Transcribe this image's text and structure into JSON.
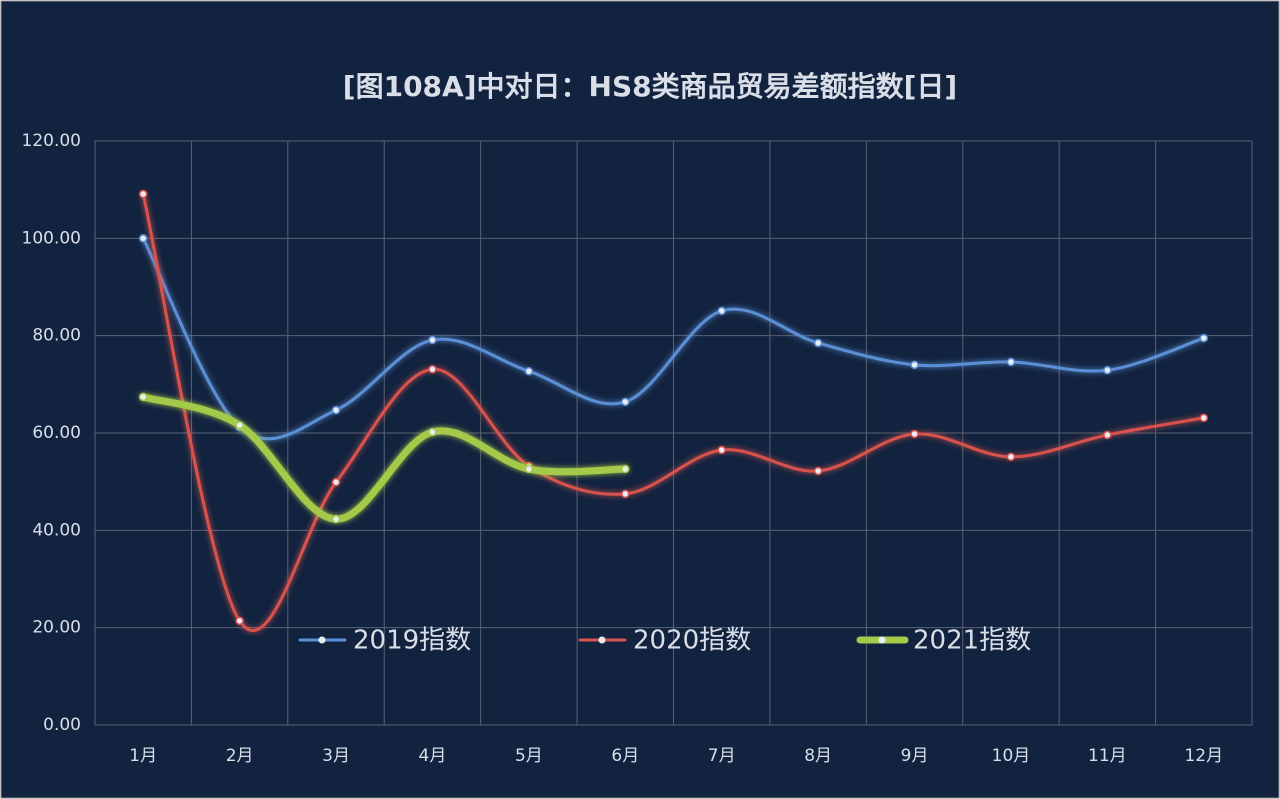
{
  "chart_data": {
    "type": "line",
    "title": "[图108A]中对日：HS8类商品贸易差额指数[日]",
    "categories": [
      "1月",
      "2月",
      "3月",
      "4月",
      "5月",
      "6月",
      "7月",
      "8月",
      "9月",
      "10月",
      "11月",
      "12月"
    ],
    "series": [
      {
        "name": "2019指数",
        "color": "#5b8fd6",
        "values": [
          100,
          61.2,
          64.7,
          79.1,
          72.7,
          66.4,
          85.1,
          78.5,
          74.0,
          74.6,
          72.9,
          79.5
        ]
      },
      {
        "name": "2020指数",
        "color": "#d9524e",
        "values": [
          109.1,
          21.4,
          49.9,
          73.1,
          53.2,
          47.5,
          56.5,
          52.2,
          59.8,
          55.1,
          59.6,
          63.1
        ]
      },
      {
        "name": "2021指数",
        "color": "#a5c94a",
        "values": [
          67.4,
          61.6,
          42.3,
          60.2,
          52.6,
          52.6,
          null,
          null,
          null,
          null,
          null,
          null
        ]
      }
    ],
    "ylim": [
      0,
      120
    ],
    "yticks": [
      {
        "value": 0,
        "label": "0.00"
      },
      {
        "value": 20,
        "label": "20.00"
      },
      {
        "value": 40,
        "label": "40.00"
      },
      {
        "value": 60,
        "label": "60.00"
      },
      {
        "value": 80,
        "label": "80.00"
      },
      {
        "value": 100,
        "label": "100.00"
      },
      {
        "value": 120,
        "label": "120.00"
      }
    ],
    "grid": true
  }
}
